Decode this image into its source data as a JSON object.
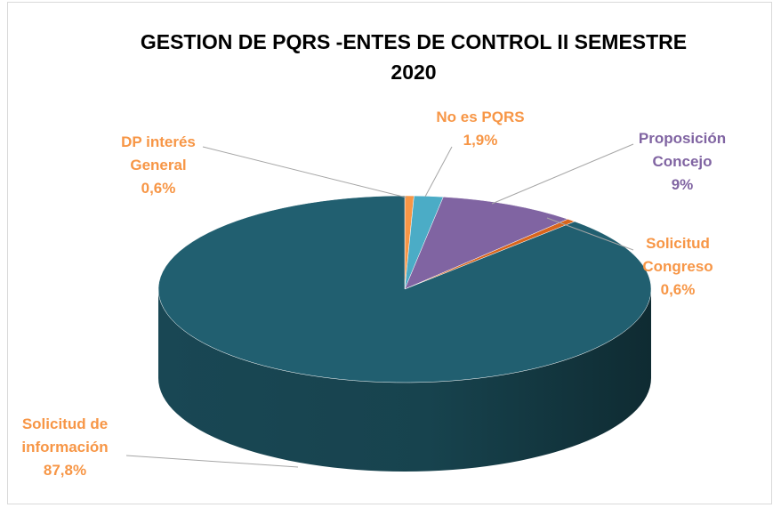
{
  "chart_data": {
    "type": "pie",
    "title": "GESTION DE PQRS -ENTES DE CONTROL II SEMESTRE 2020",
    "categories": [
      "DP interés General",
      "No es PQRS",
      "Proposición Concejo",
      "Solicitud Congreso",
      "Solicitud de información"
    ],
    "values": [
      0.6,
      1.9,
      9,
      0.6,
      87.8
    ],
    "value_labels": [
      "0,6%",
      "1,9%",
      "9%",
      "0,6%",
      "87,8%"
    ],
    "colors": [
      "#f79646",
      "#4bacc6",
      "#8064a2",
      "#d9651c",
      "#215f70"
    ],
    "label_colors": [
      "#f79646",
      "#f79646",
      "#8064a2",
      "#f79646",
      "#f79646"
    ]
  }
}
